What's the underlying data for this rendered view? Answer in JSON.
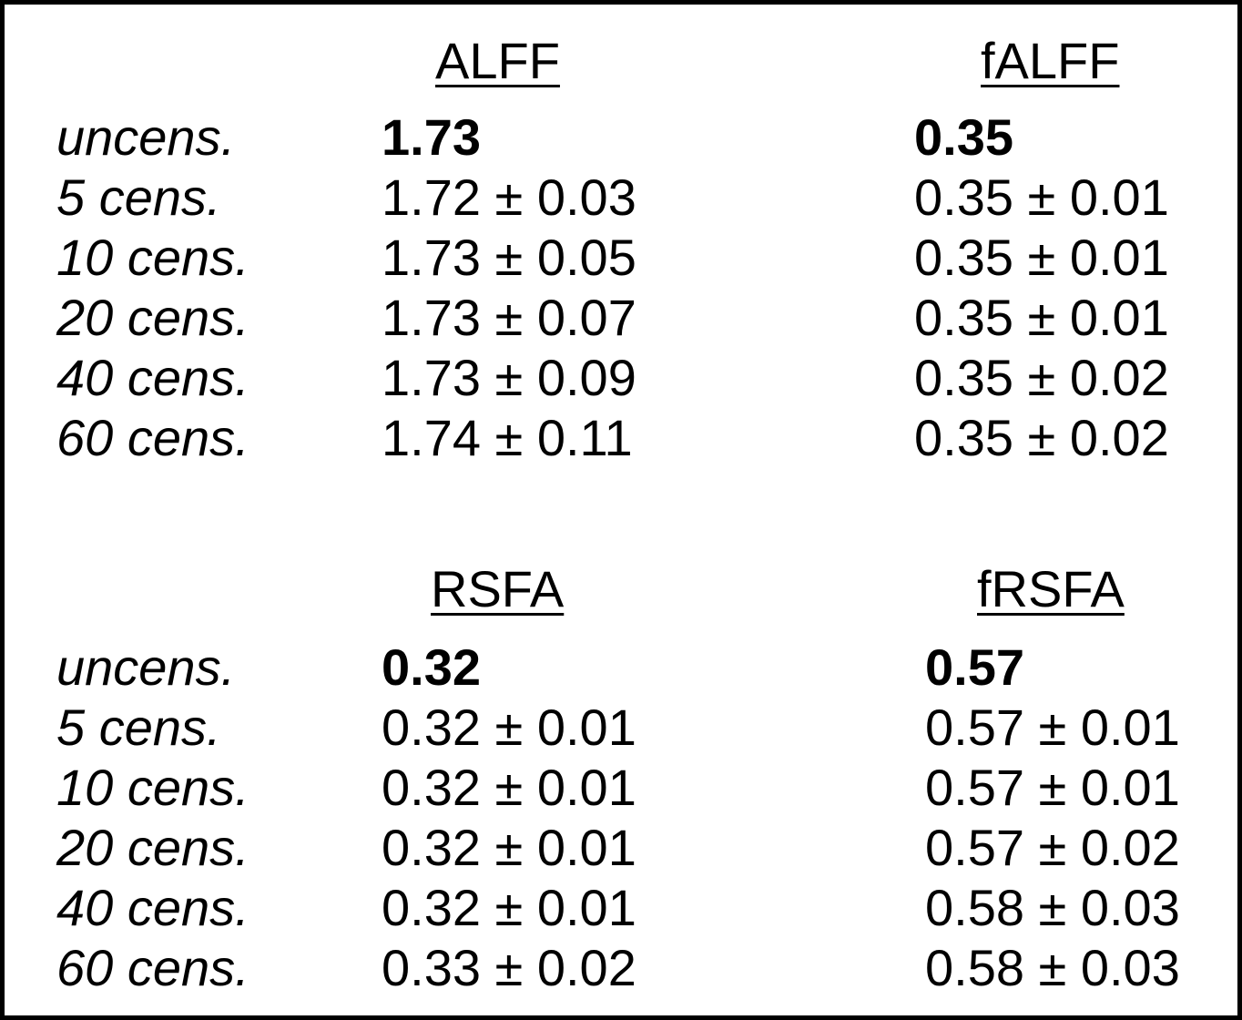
{
  "panels": [
    {
      "headers": [
        "ALFF",
        "fALFF"
      ],
      "rows": [
        {
          "label": "uncens.",
          "values": [
            "1.73",
            "0.35"
          ]
        },
        {
          "label": "5 cens.",
          "values": [
            "1.72 ± 0.03",
            "0.35 ± 0.01"
          ]
        },
        {
          "label": "10 cens.",
          "values": [
            "1.73 ± 0.05",
            "0.35 ± 0.01"
          ]
        },
        {
          "label": "20 cens.",
          "values": [
            "1.73 ± 0.07",
            "0.35 ± 0.01"
          ]
        },
        {
          "label": "40 cens.",
          "values": [
            "1.73 ± 0.09",
            "0.35 ± 0.02"
          ]
        },
        {
          "label": "60 cens.",
          "values": [
            "1.74 ± 0.11",
            "0.35 ± 0.02"
          ]
        }
      ]
    },
    {
      "headers": [
        "RSFA",
        "fRSFA"
      ],
      "rows": [
        {
          "label": "uncens.",
          "values": [
            "0.32",
            "0.57"
          ]
        },
        {
          "label": "5 cens.",
          "values": [
            "0.32 ± 0.01",
            "0.57 ± 0.01"
          ]
        },
        {
          "label": "10 cens.",
          "values": [
            "0.32 ± 0.01",
            "0.57 ± 0.01"
          ]
        },
        {
          "label": "20 cens.",
          "values": [
            "0.32 ± 0.01",
            "0.57 ± 0.02"
          ]
        },
        {
          "label": "40 cens.",
          "values": [
            "0.32 ± 0.01",
            "0.58 ± 0.03"
          ]
        },
        {
          "label": "60 cens.",
          "values": [
            "0.33 ± 0.02",
            "0.58 ± 0.03"
          ]
        }
      ]
    }
  ]
}
